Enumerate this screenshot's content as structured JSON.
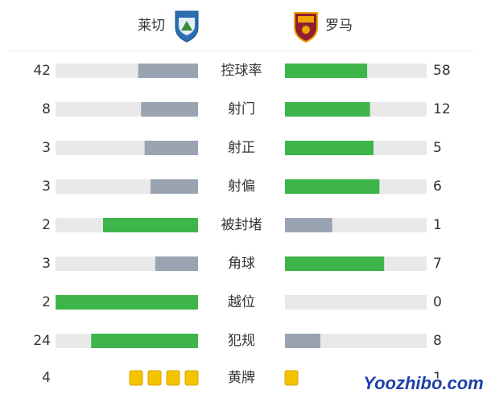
{
  "header": {
    "home": "莱切",
    "away": "罗马"
  },
  "stats": [
    {
      "label": "控球率",
      "home": 42,
      "away": 58
    },
    {
      "label": "射门",
      "home": 8,
      "away": 12
    },
    {
      "label": "射正",
      "home": 3,
      "away": 5
    },
    {
      "label": "射偏",
      "home": 3,
      "away": 6
    },
    {
      "label": "被封堵",
      "home": 2,
      "away": 1
    },
    {
      "label": "角球",
      "home": 3,
      "away": 7
    },
    {
      "label": "越位",
      "home": 2,
      "away": 0
    },
    {
      "label": "犯规",
      "home": 24,
      "away": 8
    }
  ],
  "cards": {
    "label": "黄牌",
    "home": 4,
    "away": 1
  },
  "watermark": "Yoozhibo.com"
}
